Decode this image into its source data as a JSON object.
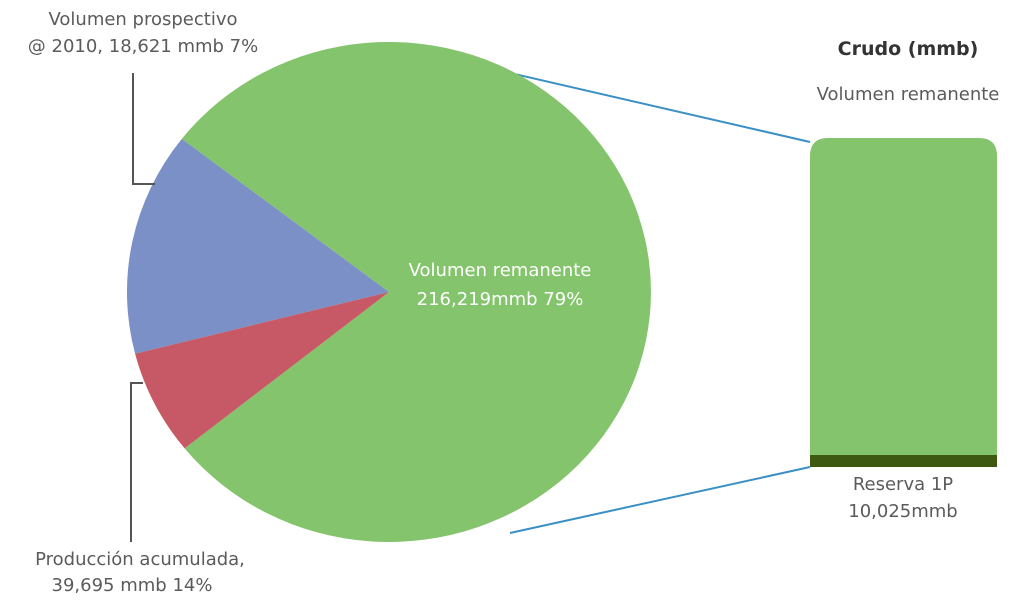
{
  "chart_data": {
    "type": "pie",
    "slices": [
      {
        "label_lines": [
          "Volumen remanente",
          "216,219mmb 79%"
        ],
        "value": 216219,
        "percent": 79,
        "color": "#84c46c"
      },
      {
        "label_lines": [
          "Producción acumulada,",
          "39,695 mmb 14%"
        ],
        "value": 39695,
        "percent": 14,
        "color": "#7b90c6"
      },
      {
        "label_lines": [
          "Volumen prospectivo",
          "@ 2010, 18,621 mmb 7%"
        ],
        "value": 18621,
        "percent": 7,
        "color": "#c75866"
      }
    ],
    "detail_bar": {
      "title": "Crudo (mmb)",
      "top_label": "Volumen remanente",
      "bottom_label_lines": [
        "Reserva 1P",
        "10,025mmb"
      ],
      "total": 216219,
      "reserve": 10025,
      "color_remaining": "#84c46c",
      "color_reserve": "#3e5a12"
    },
    "connector_color": "#3a8fc4",
    "leader_color": "#555555"
  }
}
